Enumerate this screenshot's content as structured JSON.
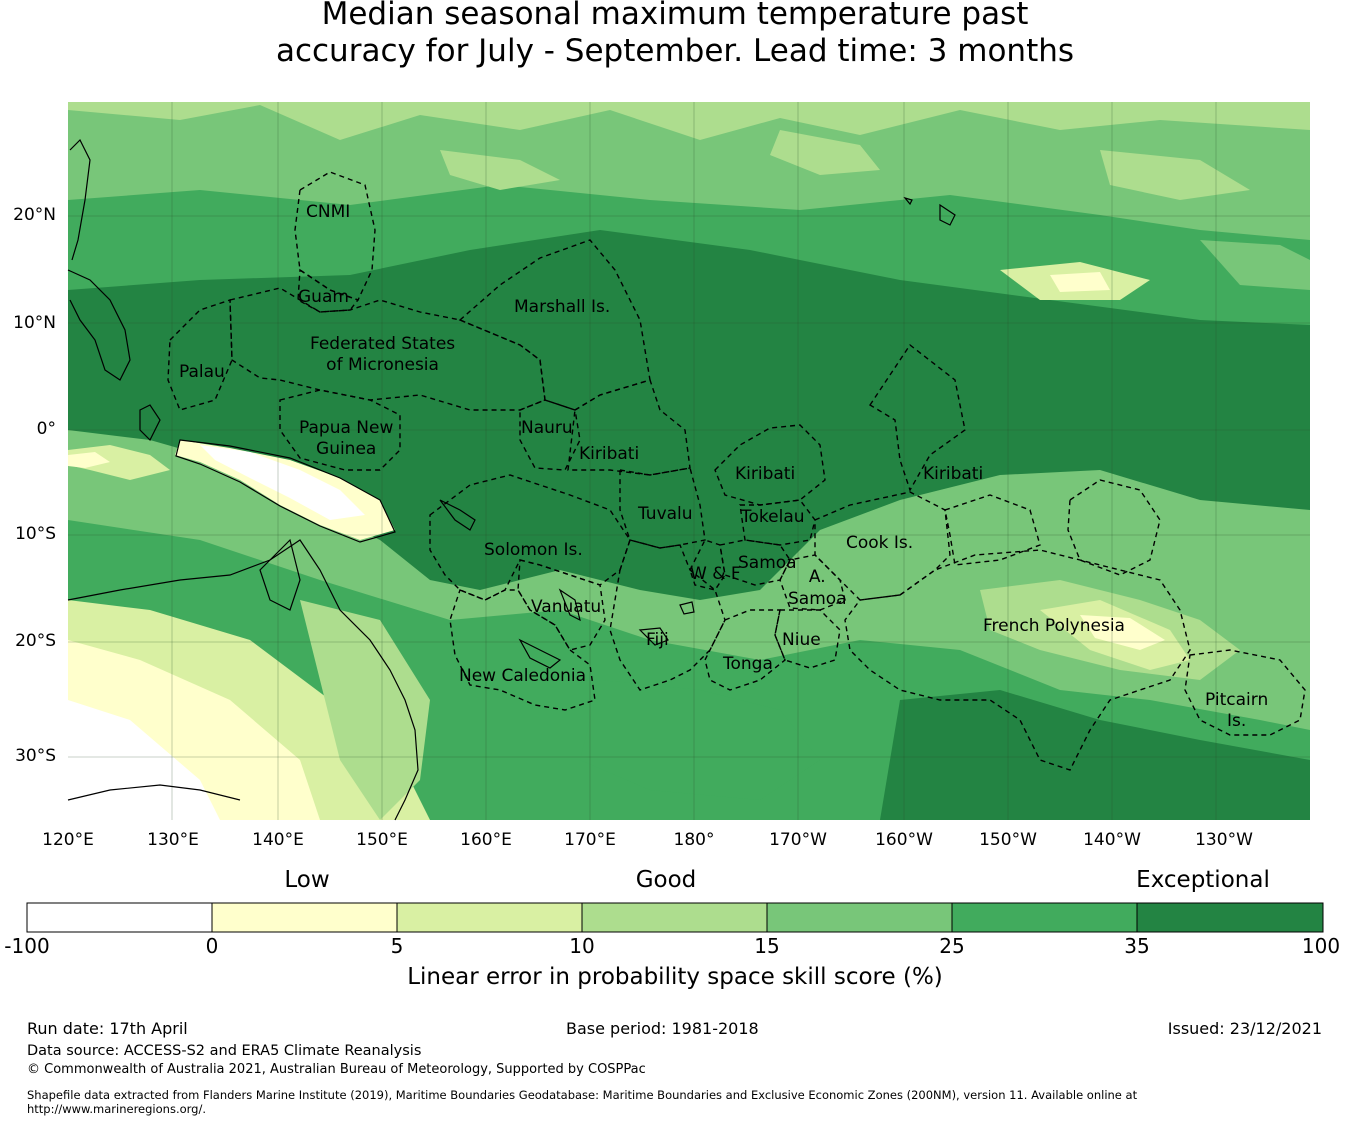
{
  "title": {
    "line1": "Median seasonal maximum temperature past",
    "line2": "accuracy for July - September. Lead time: 3 months"
  },
  "map": {
    "lat_labels": [
      "20°N",
      "10°N",
      "0°",
      "10°S",
      "20°S",
      "30°S"
    ],
    "lon_labels": [
      "120°E",
      "130°E",
      "140°E",
      "150°E",
      "160°E",
      "170°E",
      "180°",
      "170°W",
      "160°W",
      "150°W",
      "140°W",
      "130°W"
    ],
    "regions": [
      {
        "name": "CNMI"
      },
      {
        "name": "Guam"
      },
      {
        "name": "Marshall Is."
      },
      {
        "name": "Federated States\nof Micronesia"
      },
      {
        "name": "Palau"
      },
      {
        "name": "Papua New\nGuinea"
      },
      {
        "name": "Nauru"
      },
      {
        "name": "Kiribati"
      },
      {
        "name": "Kiribati"
      },
      {
        "name": "Kiribati"
      },
      {
        "name": "Tuvalu"
      },
      {
        "name": "Tokelau"
      },
      {
        "name": "Cook Is."
      },
      {
        "name": "Solomon Is."
      },
      {
        "name": "Samoa"
      },
      {
        "name": "W & F"
      },
      {
        "name": "A.\nSamoa"
      },
      {
        "name": "Vanuatu"
      },
      {
        "name": "Fiji"
      },
      {
        "name": "Niue"
      },
      {
        "name": "Tonga"
      },
      {
        "name": "New Caledonia"
      },
      {
        "name": "French Polynesia"
      },
      {
        "name": "Pitcairn\nIs."
      }
    ]
  },
  "legend": {
    "categories": [
      "Low",
      "Good",
      "Exceptional"
    ],
    "ticks": [
      "-100",
      "0",
      "5",
      "10",
      "15",
      "25",
      "35",
      "100"
    ],
    "colors": [
      "#ffffff",
      "#ffffcc",
      "#d9f0a3",
      "#addd8e",
      "#78c679",
      "#41ab5d",
      "#238443"
    ],
    "label": "Linear error in probability space skill score (%)"
  },
  "footer": {
    "run_date": "Run date: 17th April",
    "base_period": "Base period: 1981-2018",
    "issued": "Issued: 23/12/2021",
    "data_source": "Data source: ACCESS-S2 and ERA5 Climate Reanalysis",
    "copyright": "© Commonwealth of Australia 2021, Australian Bureau of Meteorology, Supported by COSPPac",
    "shapefile": "Shapefile data extracted from Flanders Marine Institute (2019), Maritime Boundaries Geodatabase: Maritime Boundaries and Exclusive Economic Zones (200NM), version 11. Available online at http://www.marineregions.org/."
  }
}
